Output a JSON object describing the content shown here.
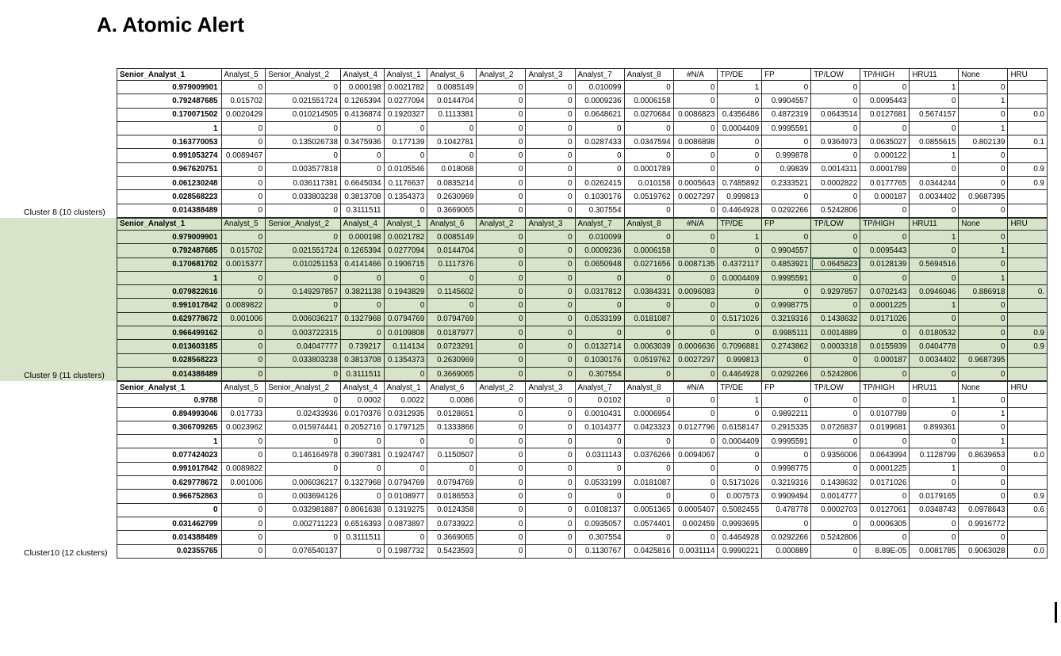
{
  "heading": "A.   Atomic Alert",
  "columns": [
    "Senior_Analyst_1",
    "Analyst_5",
    "Senior_Analyst_2",
    "Analyst_4",
    "Analyst_1",
    "Analyst_6",
    "Analyst_2",
    "Analyst_3",
    "Analyst_7",
    "Analyst_8",
    "#N/A",
    "TP/DE",
    "FP",
    "TP/LOW",
    "TP/HIGH",
    "HRU11",
    "None",
    "HRU"
  ],
  "clusters": [
    {
      "label": "Cluster 8 (10 clusters)",
      "shaded": false,
      "rows": [
        [
          "0.979009901",
          "0",
          "0",
          "0.000198",
          "0.0021782",
          "0.0085149",
          "0",
          "0",
          "0.010099",
          "0",
          "0",
          "1",
          "0",
          "0",
          "0",
          "1",
          "0",
          ""
        ],
        [
          "0.792487685",
          "0.015702",
          "0.021551724",
          "0.1265394",
          "0.0277094",
          "0.0144704",
          "0",
          "0",
          "0.0009236",
          "0.0006158",
          "0",
          "0",
          "0.9904557",
          "0",
          "0.0095443",
          "0",
          "1",
          ""
        ],
        [
          "0.170071502",
          "0.0020429",
          "0.010214505",
          "0.4136874",
          "0.1920327",
          "0.1113381",
          "0",
          "0",
          "0.0648621",
          "0.0270684",
          "0.0086823",
          "0.4356486",
          "0.4872319",
          "0.0643514",
          "0.0127681",
          "0.5674157",
          "0",
          "0.0"
        ],
        [
          "1",
          "0",
          "0",
          "0",
          "0",
          "0",
          "0",
          "0",
          "0",
          "0",
          "0",
          "0.0004409",
          "0.9995591",
          "0",
          "0",
          "0",
          "1",
          ""
        ],
        [
          "0.163770053",
          "0",
          "0.135026738",
          "0.3475936",
          "0.177139",
          "0.1042781",
          "0",
          "0",
          "0.0287433",
          "0.0347594",
          "0.0086898",
          "0",
          "0",
          "0.9364973",
          "0.0635027",
          "0.0855615",
          "0.802139",
          "0.1"
        ],
        [
          "0.991053274",
          "0.0089467",
          "0",
          "0",
          "0",
          "0",
          "0",
          "0",
          "0",
          "0",
          "0",
          "0",
          "0.999878",
          "0",
          "0.000122",
          "1",
          "0",
          ""
        ],
        [
          "0.967620751",
          "0",
          "0.003577818",
          "0",
          "0.0105546",
          "0.018068",
          "0",
          "0",
          "0",
          "0.0001789",
          "0",
          "0",
          "0.99839",
          "0.0014311",
          "0.0001789",
          "0",
          "0",
          "0.9"
        ],
        [
          "0.061230248",
          "0",
          "0.036117381",
          "0.6645034",
          "0.1176637",
          "0.0835214",
          "0",
          "0",
          "0.0262415",
          "0.010158",
          "0.0005643",
          "0.7485892",
          "0.2333521",
          "0.0002822",
          "0.0177765",
          "0.0344244",
          "0",
          "0.9"
        ],
        [
          "0.028568223",
          "0",
          "0.033803238",
          "0.3813708",
          "0.1354373",
          "0.2630969",
          "0",
          "0",
          "0.1030176",
          "0.0519762",
          "0.0027297",
          "0.999813",
          "0",
          "0",
          "0.000187",
          "0.0034402",
          "0.9687395",
          ""
        ],
        [
          "0.014388489",
          "0",
          "0",
          "0.3111511",
          "0",
          "0.3669065",
          "0",
          "0",
          "0.307554",
          "0",
          "0",
          "0.4464928",
          "0.0292266",
          "0.5242806",
          "0",
          "0",
          "0",
          ""
        ]
      ]
    },
    {
      "label": "Cluster 9 (11 clusters)",
      "shaded": true,
      "rows": [
        [
          "0.979009901",
          "0",
          "0",
          "0.000198",
          "0.0021782",
          "0.0085149",
          "0",
          "0",
          "0.010099",
          "0",
          "0",
          "1",
          "0",
          "0",
          "0",
          "1",
          "0",
          ""
        ],
        [
          "0.792487685",
          "0.015702",
          "0.021551724",
          "0.1265394",
          "0.0277094",
          "0.0144704",
          "0",
          "0",
          "0.0009236",
          "0.0006158",
          "0",
          "0",
          "0.9904557",
          "0",
          "0.0095443",
          "0",
          "1",
          ""
        ],
        [
          "0.170681702",
          "0.0015377",
          "0.010251153",
          "0.4141466",
          "0.1906715",
          "0.1117376",
          "0",
          "0",
          "0.0650948",
          "0.0271656",
          "0.0087135",
          "0.4372117",
          "0.4853921",
          "0.0645823",
          "0.0128139",
          "0.5694516",
          "0",
          ""
        ],
        [
          "1",
          "0",
          "0",
          "0",
          "0",
          "0",
          "0",
          "0",
          "0",
          "0",
          "0",
          "0.0004409",
          "0.9995591",
          "0",
          "0",
          "0",
          "1",
          ""
        ],
        [
          "0.079822616",
          "0",
          "0.149297857",
          "0.3821138",
          "0.1943829",
          "0.1145602",
          "0",
          "0",
          "0.0317812",
          "0.0384331",
          "0.0096083",
          "0",
          "0",
          "0.9297857",
          "0.0702143",
          "0.0946046",
          "0.886918",
          "0."
        ],
        [
          "0.991017842",
          "0.0089822",
          "0",
          "0",
          "0",
          "0",
          "0",
          "0",
          "0",
          "0",
          "0",
          "0",
          "0.9998775",
          "0",
          "0.0001225",
          "1",
          "0",
          ""
        ],
        [
          "0.629778672",
          "0.001006",
          "0.006036217",
          "0.1327968",
          "0.0794769",
          "0.0794769",
          "0",
          "0",
          "0.0533199",
          "0.0181087",
          "0",
          "0.5171026",
          "0.3219316",
          "0.1438632",
          "0.0171026",
          "0",
          "0",
          ""
        ],
        [
          "0.966499162",
          "0",
          "0.003722315",
          "0",
          "0.0109808",
          "0.0187977",
          "0",
          "0",
          "0",
          "0",
          "0",
          "0",
          "0.9985111",
          "0.0014889",
          "0",
          "0.0180532",
          "0",
          "0.9"
        ],
        [
          "0.013603185",
          "0",
          "0.04047777",
          "0.739217",
          "0.114134",
          "0.0723291",
          "0",
          "0",
          "0.0132714",
          "0.0063039",
          "0.0006636",
          "0.7096881",
          "0.2743862",
          "0.0003318",
          "0.0155939",
          "0.0404778",
          "0",
          "0.9"
        ],
        [
          "0.028568223",
          "0",
          "0.033803238",
          "0.3813708",
          "0.1354373",
          "0.2630969",
          "0",
          "0",
          "0.1030176",
          "0.0519762",
          "0.0027297",
          "0.999813",
          "0",
          "0",
          "0.000187",
          "0.0034402",
          "0.9687395",
          ""
        ],
        [
          "0.014388489",
          "0",
          "0",
          "0.3111511",
          "0",
          "0.3669065",
          "0",
          "0",
          "0.307554",
          "0",
          "0",
          "0.4464928",
          "0.0292266",
          "0.5242806",
          "0",
          "0",
          "0",
          ""
        ]
      ]
    },
    {
      "label": "Cluster10 (12 clusters)",
      "shaded": false,
      "rows": [
        [
          "0.9788",
          "0",
          "0",
          "0.0002",
          "0.0022",
          "0.0086",
          "0",
          "0",
          "0.0102",
          "0",
          "0",
          "1",
          "0",
          "0",
          "0",
          "1",
          "0",
          ""
        ],
        [
          "0.894993046",
          "0.017733",
          "0.02433936",
          "0.0170376",
          "0.0312935",
          "0.0128651",
          "0",
          "0",
          "0.0010431",
          "0.0006954",
          "0",
          "0",
          "0.9892211",
          "0",
          "0.0107789",
          "0",
          "1",
          ""
        ],
        [
          "0.306709265",
          "0.0023962",
          "0.015974441",
          "0.2052716",
          "0.1797125",
          "0.1333866",
          "0",
          "0",
          "0.1014377",
          "0.0423323",
          "0.0127796",
          "0.6158147",
          "0.2915335",
          "0.0726837",
          "0.0199681",
          "0.899361",
          "0",
          ""
        ],
        [
          "1",
          "0",
          "0",
          "0",
          "0",
          "0",
          "0",
          "0",
          "0",
          "0",
          "0",
          "0.0004409",
          "0.9995591",
          "0",
          "0",
          "0",
          "1",
          ""
        ],
        [
          "0.077424023",
          "0",
          "0.146164978",
          "0.3907381",
          "0.1924747",
          "0.1150507",
          "0",
          "0",
          "0.0311143",
          "0.0376266",
          "0.0094067",
          "0",
          "0",
          "0.9356006",
          "0.0643994",
          "0.1128799",
          "0.8639653",
          "0.0"
        ],
        [
          "0.991017842",
          "0.0089822",
          "0",
          "0",
          "0",
          "0",
          "0",
          "0",
          "0",
          "0",
          "0",
          "0",
          "0.9998775",
          "0",
          "0.0001225",
          "1",
          "0",
          ""
        ],
        [
          "0.629778672",
          "0.001006",
          "0.006036217",
          "0.1327968",
          "0.0794769",
          "0.0794769",
          "0",
          "0",
          "0.0533199",
          "0.0181087",
          "0",
          "0.5171026",
          "0.3219316",
          "0.1438632",
          "0.0171026",
          "0",
          "0",
          ""
        ],
        [
          "0.966752863",
          "0",
          "0.003694126",
          "0",
          "0.0108977",
          "0.0186553",
          "0",
          "0",
          "0",
          "0",
          "0",
          "0.007573",
          "0.9909494",
          "0.0014777",
          "0",
          "0.0179165",
          "0",
          "0.9"
        ],
        [
          "0",
          "0",
          "0.032981887",
          "0.8061638",
          "0.1319275",
          "0.0124358",
          "0",
          "0",
          "0.0108137",
          "0.0051365",
          "0.0005407",
          "0.5082455",
          "0.478778",
          "0.0002703",
          "0.0127061",
          "0.0348743",
          "0.0978643",
          "0.6"
        ],
        [
          "0.031462799",
          "0",
          "0.002711223",
          "0.6516393",
          "0.0873897",
          "0.0733922",
          "0",
          "0",
          "0.0935057",
          "0.0574401",
          "0.002459",
          "0.9993695",
          "0",
          "0",
          "0.0006305",
          "0",
          "0.9916772",
          ""
        ],
        [
          "0.014388489",
          "0",
          "0",
          "0.3111511",
          "0",
          "0.3669065",
          "0",
          "0",
          "0.307554",
          "0",
          "0",
          "0.4464928",
          "0.0292266",
          "0.5242806",
          "0",
          "0",
          "0",
          ""
        ],
        [
          "0.02355765",
          "0",
          "0.076540137",
          "0",
          "0.1987732",
          "0.5423593",
          "0",
          "0",
          "0.1130767",
          "0.0425816",
          "0.0031114",
          "0.9990221",
          "0.000889",
          "0",
          "8.89E-05",
          "0.0081785",
          "0.9063028",
          "0.0"
        ]
      ]
    }
  ]
}
